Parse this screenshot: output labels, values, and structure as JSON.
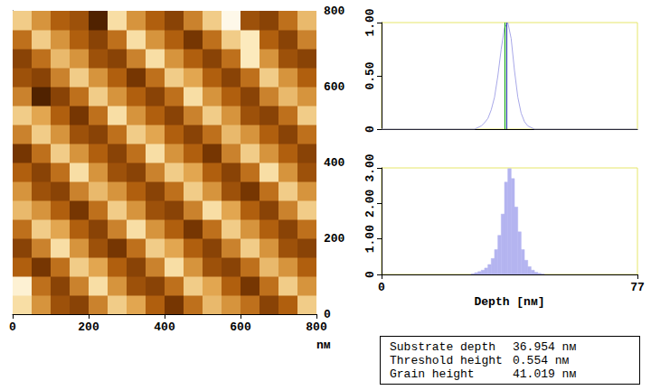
{
  "chart_data": [
    {
      "type": "heatmap",
      "x": [
        25,
        75,
        125,
        175,
        225,
        275,
        325,
        375,
        425,
        475,
        525,
        575,
        625,
        675,
        725,
        775
      ],
      "y": [
        25,
        75,
        125,
        175,
        225,
        275,
        325,
        375,
        425,
        475,
        525,
        575,
        625,
        675,
        725,
        775
      ],
      "z": [
        [
          42,
          38,
          34,
          33,
          37,
          41,
          39,
          35,
          32,
          36,
          40,
          38,
          36,
          33,
          35,
          41
        ],
        [
          44,
          36,
          33,
          37,
          42,
          38,
          34,
          33,
          36,
          41,
          39,
          35,
          32,
          36,
          41,
          38
        ],
        [
          35,
          32,
          36,
          41,
          39,
          35,
          33,
          37,
          42,
          38,
          34,
          33,
          36,
          40,
          38,
          35
        ],
        [
          33,
          37,
          42,
          38,
          34,
          32,
          36,
          41,
          39,
          35,
          33,
          37,
          41,
          38,
          34,
          33
        ],
        [
          36,
          41,
          39,
          35,
          33,
          37,
          42,
          38,
          35,
          32,
          36,
          41,
          38,
          35,
          33,
          36
        ],
        [
          40,
          38,
          35,
          32,
          36,
          41,
          38,
          34,
          33,
          37,
          42,
          39,
          35,
          33,
          37,
          41
        ],
        [
          38,
          34,
          33,
          37,
          40,
          38,
          35,
          33,
          36,
          41,
          38,
          34,
          32,
          36,
          41,
          38
        ],
        [
          35,
          33,
          36,
          42,
          38,
          34,
          33,
          37,
          41,
          39,
          35,
          33,
          36,
          42,
          38,
          34
        ],
        [
          32,
          36,
          41,
          38,
          35,
          33,
          36,
          42,
          38,
          35,
          32,
          37,
          41,
          38,
          35,
          33
        ],
        [
          37,
          41,
          38,
          34,
          33,
          36,
          41,
          39,
          35,
          33,
          36,
          40,
          38,
          35,
          33,
          36
        ],
        [
          41,
          39,
          35,
          32,
          36,
          42,
          38,
          35,
          33,
          37,
          41,
          38,
          34,
          33,
          36,
          41
        ],
        [
          37,
          30,
          33,
          36,
          41,
          38,
          35,
          33,
          36,
          42,
          38,
          35,
          33,
          37,
          40,
          38
        ],
        [
          34,
          33,
          37,
          41,
          38,
          35,
          32,
          36,
          41,
          39,
          35,
          33,
          36,
          41,
          38,
          35
        ],
        [
          33,
          36,
          40,
          38,
          34,
          33,
          37,
          42,
          38,
          35,
          33,
          36,
          43,
          38,
          34,
          33
        ],
        [
          36,
          41,
          38,
          35,
          33,
          36,
          42,
          38,
          35,
          32,
          36,
          41,
          43,
          35,
          33,
          37
        ],
        [
          41,
          38,
          35,
          34,
          30,
          42,
          38,
          35,
          33,
          37,
          41,
          45,
          34,
          33,
          36,
          40
        ]
      ],
      "zlim": [
        28,
        46
      ],
      "xlim": [
        0,
        800
      ],
      "ylim": [
        0,
        800
      ],
      "xticks": [
        0,
        200,
        400,
        600,
        800
      ],
      "yticks": [
        0,
        200,
        400,
        600,
        800
      ],
      "x_label": "nм",
      "grid": false
    },
    {
      "type": "line",
      "x": [
        0,
        28,
        30,
        31,
        32,
        33,
        34,
        35,
        36,
        37,
        38,
        39,
        40,
        41,
        42,
        43,
        44,
        46,
        77
      ],
      "values": [
        0,
        0,
        0.03,
        0.06,
        0.1,
        0.18,
        0.3,
        0.5,
        0.75,
        0.95,
        1.0,
        0.85,
        0.55,
        0.3,
        0.15,
        0.07,
        0.03,
        0,
        0
      ],
      "color": "#a8a8e8",
      "markers": [
        {
          "value": 36.954,
          "color": "#00a000"
        },
        {
          "value": 37.5,
          "color": "#2030a0"
        }
      ],
      "xlim": [
        0,
        77
      ],
      "ylim": [
        0,
        1
      ],
      "yticks": [
        0,
        {
          "value": 0.5,
          "label": "0.50"
        },
        {
          "value": 1,
          "label": "1.00"
        }
      ],
      "tick_labels": "y",
      "grid": false
    },
    {
      "type": "histogram",
      "bins": [
        27,
        28,
        29,
        30,
        31,
        32,
        33,
        34,
        35,
        36,
        37,
        38,
        39,
        40,
        41,
        42,
        43,
        44,
        45,
        46,
        47,
        48,
        49
      ],
      "counts": [
        0.02,
        0.05,
        0.08,
        0.12,
        0.18,
        0.28,
        0.45,
        0.7,
        1.1,
        1.7,
        2.6,
        2.98,
        2.7,
        1.9,
        1.2,
        0.7,
        0.4,
        0.22,
        0.12,
        0.06,
        0.03,
        0.01
      ],
      "color": "#b4b4f0",
      "xlim": [
        0,
        77
      ],
      "ylim": [
        0,
        3
      ],
      "xticks": [
        0,
        77
      ],
      "yticks": [
        0,
        {
          "value": 1,
          "label": "1.00"
        },
        {
          "value": 2,
          "label": "2.00"
        },
        {
          "value": 3,
          "label": "3.00"
        }
      ],
      "x_label": "Depth [nм]",
      "grid": false
    }
  ],
  "readout": [
    {
      "label": "Substrate depth",
      "value": "36.954 nм"
    },
    {
      "label": "Threshold height",
      "value": "0.554 nм"
    },
    {
      "label": "Grain height",
      "value": "41.019 nм"
    }
  ]
}
